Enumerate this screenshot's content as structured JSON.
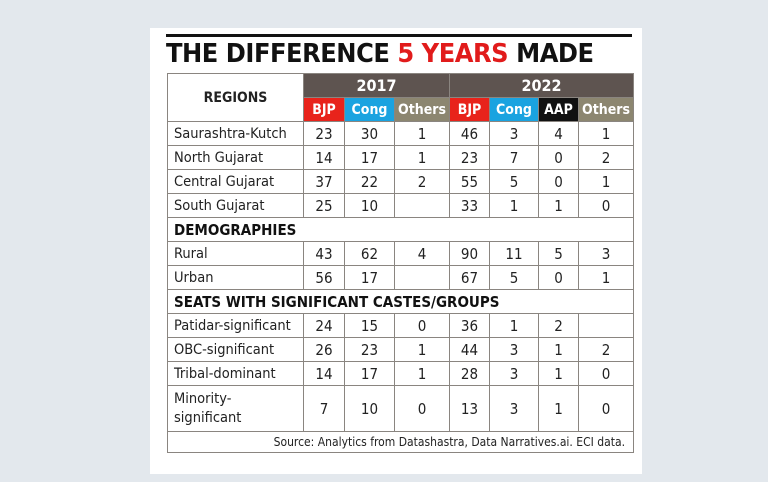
{
  "title": {
    "part1": "THE DIFFERENCE ",
    "highlight": "5 YEARS",
    "part2": " MADE"
  },
  "colors": {
    "bjp": "#e8231b",
    "cong": "#1aa3e0",
    "aap": "#111111",
    "others": "#8c8670",
    "year_header": "#5e5450",
    "highlight": "#e11b1b"
  },
  "chart_data": {
    "type": "table",
    "title": "THE DIFFERENCE 5 YEARS MADE",
    "row_header": "REGIONS",
    "years": [
      {
        "label": "2017",
        "parties": [
          {
            "name": "BJP",
            "color": "#e8231b"
          },
          {
            "name": "Cong",
            "color": "#1aa3e0"
          },
          {
            "name": "Others",
            "color": "#8c8670"
          }
        ]
      },
      {
        "label": "2022",
        "parties": [
          {
            "name": "BJP",
            "color": "#e8231b"
          },
          {
            "name": "Cong",
            "color": "#1aa3e0"
          },
          {
            "name": "AAP",
            "color": "#111111"
          },
          {
            "name": "Others",
            "color": "#8c8670"
          }
        ]
      }
    ],
    "sections": [
      {
        "heading": "",
        "rows": [
          {
            "label": "Saurashtra-Kutch",
            "values": [
              "23",
              "30",
              "1",
              "46",
              "3",
              "4",
              "1"
            ]
          },
          {
            "label": "North Gujarat",
            "values": [
              "14",
              "17",
              "1",
              "23",
              "7",
              "0",
              "2"
            ]
          },
          {
            "label": "Central Gujarat",
            "values": [
              "37",
              "22",
              "2",
              "55",
              "5",
              "0",
              "1"
            ]
          },
          {
            "label": "South Gujarat",
            "values": [
              "25",
              "10",
              "",
              "33",
              "1",
              "1",
              "0"
            ]
          }
        ]
      },
      {
        "heading": "DEMOGRAPHIES",
        "rows": [
          {
            "label": "Rural",
            "values": [
              "43",
              "62",
              "4",
              "90",
              "11",
              "5",
              "3"
            ]
          },
          {
            "label": "Urban",
            "values": [
              "56",
              "17",
              "",
              "67",
              "5",
              "0",
              "1"
            ]
          }
        ]
      },
      {
        "heading": "SEATS WITH SIGNIFICANT CASTES/GROUPS",
        "rows": [
          {
            "label": "Patidar-significant",
            "values": [
              "24",
              "15",
              "0",
              "36",
              "1",
              "2",
              ""
            ]
          },
          {
            "label": "OBC-significant",
            "values": [
              "26",
              "23",
              "1",
              "44",
              "3",
              "1",
              "2"
            ]
          },
          {
            "label": "Tribal-dominant",
            "values": [
              "14",
              "17",
              "1",
              "28",
              "3",
              "1",
              "0"
            ]
          },
          {
            "label": "Minority-\nsignificant",
            "values": [
              "7",
              "10",
              "0",
              "13",
              "3",
              "1",
              "0"
            ]
          }
        ]
      }
    ],
    "source": "Source: Analytics from Datashastra, Data Narratives.ai. ECI data."
  }
}
